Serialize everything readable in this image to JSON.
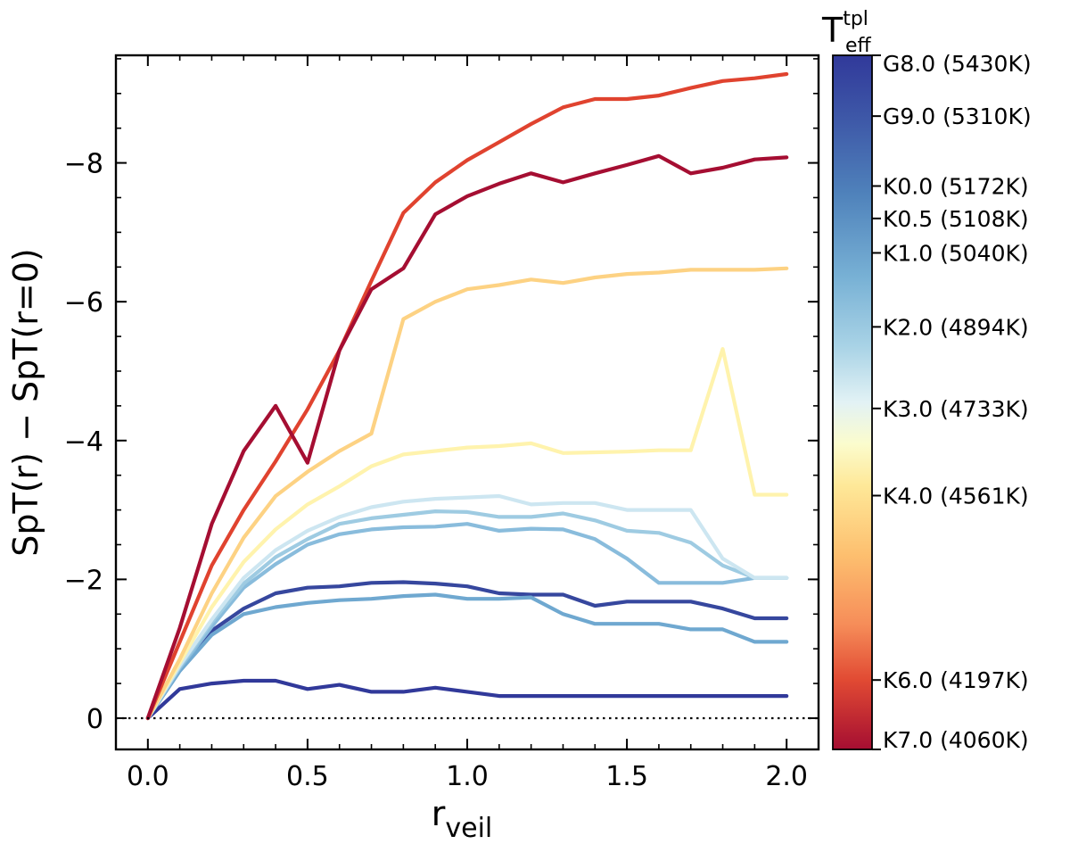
{
  "chart_data": {
    "type": "line",
    "xlabel": {
      "main": "r",
      "sub": "veil"
    },
    "ylabel": "SpT(r) − SpT(r=0)",
    "xlim": [
      -0.1,
      2.1
    ],
    "ylim": [
      0.45,
      -9.55
    ],
    "y_inverted": true,
    "xticks": [
      0.0,
      0.5,
      1.0,
      1.5,
      2.0
    ],
    "xtick_labels": [
      "0.0",
      "0.5",
      "1.0",
      "1.5",
      "2.0"
    ],
    "yticks": [
      0,
      -2,
      -4,
      -6,
      -8
    ],
    "ytick_labels": [
      "0",
      "−2",
      "−4",
      "−6",
      "−8"
    ],
    "reference_line": {
      "y": 0,
      "style": "dotted"
    },
    "grid": false,
    "x": [
      0.0,
      0.1,
      0.2,
      0.3,
      0.4,
      0.5,
      0.6,
      0.7,
      0.8,
      0.9,
      1.0,
      1.1,
      1.2,
      1.3,
      1.4,
      1.5,
      1.6,
      1.7,
      1.8,
      1.9,
      2.0
    ],
    "series": [
      {
        "color": "#31399a",
        "values": [
          0,
          -0.42,
          -0.5,
          -0.54,
          -0.54,
          -0.42,
          -0.48,
          -0.38,
          -0.38,
          -0.44,
          -0.38,
          -0.32,
          -0.32,
          -0.32,
          -0.32,
          -0.32,
          -0.32,
          -0.32,
          -0.32,
          -0.32,
          -0.32
        ]
      },
      {
        "color": "#36479e",
        "values": [
          0,
          -0.7,
          -1.26,
          -1.58,
          -1.8,
          -1.88,
          -1.9,
          -1.95,
          -1.96,
          -1.94,
          -1.9,
          -1.8,
          -1.78,
          -1.78,
          -1.62,
          -1.68,
          -1.68,
          -1.68,
          -1.58,
          -1.44,
          -1.44
        ]
      },
      {
        "color": "#6fa8d0",
        "values": [
          0,
          -0.68,
          -1.2,
          -1.5,
          -1.6,
          -1.66,
          -1.7,
          -1.72,
          -1.76,
          -1.78,
          -1.72,
          -1.72,
          -1.74,
          -1.5,
          -1.36,
          -1.36,
          -1.36,
          -1.28,
          -1.28,
          -1.1,
          -1.1
        ]
      },
      {
        "color": "#89bcdc",
        "values": [
          0,
          -0.72,
          -1.32,
          -1.88,
          -2.22,
          -2.5,
          -2.65,
          -2.72,
          -2.75,
          -2.76,
          -2.8,
          -2.7,
          -2.73,
          -2.72,
          -2.58,
          -2.3,
          -1.95,
          -1.95,
          -1.95,
          -2.02,
          -2.02
        ]
      },
      {
        "color": "#9ecbe2",
        "values": [
          0,
          -0.74,
          -1.38,
          -1.94,
          -2.32,
          -2.58,
          -2.8,
          -2.88,
          -2.93,
          -2.98,
          -2.97,
          -2.9,
          -2.9,
          -2.95,
          -2.85,
          -2.7,
          -2.67,
          -2.53,
          -2.2,
          -2.02,
          -2.02
        ]
      },
      {
        "color": "#cde6f1",
        "values": [
          0,
          -0.76,
          -1.42,
          -2.02,
          -2.42,
          -2.7,
          -2.9,
          -3.04,
          -3.12,
          -3.16,
          -3.18,
          -3.2,
          -3.08,
          -3.1,
          -3.1,
          -3.0,
          -3.0,
          -3.0,
          -2.3,
          -2.02,
          -2.02
        ]
      },
      {
        "color": "#fff3ad",
        "values": [
          0,
          -0.8,
          -1.6,
          -2.25,
          -2.72,
          -3.08,
          -3.34,
          -3.63,
          -3.8,
          -3.85,
          -3.9,
          -3.92,
          -3.96,
          -3.82,
          -3.83,
          -3.84,
          -3.86,
          -3.86,
          -5.32,
          -3.22,
          -3.22
        ]
      },
      {
        "color": "#fdd283",
        "values": [
          0,
          -0.85,
          -1.8,
          -2.6,
          -3.2,
          -3.55,
          -3.85,
          -4.1,
          -5.75,
          -6.0,
          -6.18,
          -6.24,
          -6.32,
          -6.27,
          -6.35,
          -6.4,
          -6.42,
          -6.46,
          -6.46,
          -6.46,
          -6.48
        ]
      },
      {
        "color": "#e0432f",
        "values": [
          0,
          -1.1,
          -2.2,
          -3.0,
          -3.7,
          -4.45,
          -5.3,
          -6.3,
          -7.28,
          -7.72,
          -8.04,
          -8.3,
          -8.56,
          -8.8,
          -8.92,
          -8.92,
          -8.97,
          -9.08,
          -9.18,
          -9.22,
          -9.28
        ]
      },
      {
        "color": "#a50e32",
        "values": [
          0,
          -1.3,
          -2.8,
          -3.85,
          -4.5,
          -3.68,
          -5.3,
          -6.18,
          -6.48,
          -7.26,
          -7.52,
          -7.7,
          -7.85,
          -7.72,
          -7.85,
          -7.97,
          -8.1,
          -7.85,
          -7.93,
          -8.05,
          -8.08
        ]
      }
    ],
    "colorbar": {
      "title": {
        "main": "T",
        "sup": "tpl",
        "sub": "eff"
      },
      "teff_range": [
        4060,
        5430
      ],
      "stops": [
        {
          "t": 0.0,
          "color": "#31399a"
        },
        {
          "t": 0.1,
          "color": "#3f5ba9"
        },
        {
          "t": 0.2,
          "color": "#4f82bb"
        },
        {
          "t": 0.32,
          "color": "#78b1d5"
        },
        {
          "t": 0.42,
          "color": "#a9d3e6"
        },
        {
          "t": 0.5,
          "color": "#e2f2f5"
        },
        {
          "t": 0.56,
          "color": "#fbfccd"
        },
        {
          "t": 0.62,
          "color": "#fee898"
        },
        {
          "t": 0.72,
          "color": "#fdbf6f"
        },
        {
          "t": 0.82,
          "color": "#f68d59"
        },
        {
          "t": 0.9,
          "color": "#e14a33"
        },
        {
          "t": 1.0,
          "color": "#a50e32"
        }
      ],
      "ticks": [
        {
          "label": "G8.0 (5430K)",
          "teff": 5430
        },
        {
          "label": "G9.0 (5310K)",
          "teff": 5310
        },
        {
          "label": "K0.0 (5172K)",
          "teff": 5172
        },
        {
          "label": "K0.5 (5108K)",
          "teff": 5108
        },
        {
          "label": "K1.0 (5040K)",
          "teff": 5040
        },
        {
          "label": "K2.0 (4894K)",
          "teff": 4894
        },
        {
          "label": "K3.0 (4733K)",
          "teff": 4733
        },
        {
          "label": "K4.0 (4561K)",
          "teff": 4561
        },
        {
          "label": "K6.0 (4197K)",
          "teff": 4197
        },
        {
          "label": "K7.0 (4060K)",
          "teff": 4060
        }
      ]
    }
  }
}
